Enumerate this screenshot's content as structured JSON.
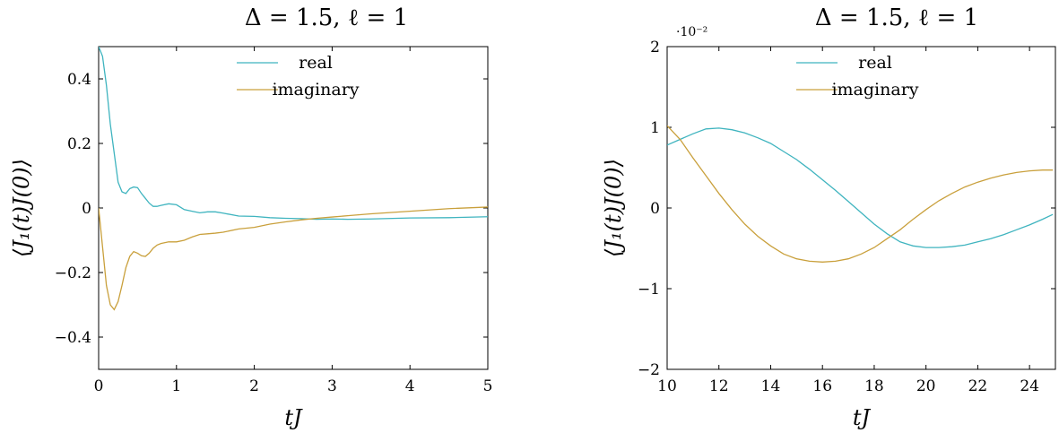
{
  "chart_data": [
    {
      "type": "line",
      "title": "Δ = 1.5, ℓ = 1",
      "xlabel": "tJ",
      "ylabel": "⟨J₁(t)J(0)⟩",
      "xlim": [
        0,
        5
      ],
      "ylim": [
        -0.5,
        0.5
      ],
      "xticks": [
        "0",
        "1",
        "2",
        "3",
        "4",
        "5"
      ],
      "xtick_values": [
        0,
        1,
        2,
        3,
        4,
        5
      ],
      "yticks": [
        "−0.4",
        "−0.2",
        "0",
        "0.2",
        "0.4"
      ],
      "ytick_values": [
        -0.4,
        -0.2,
        0,
        0.2,
        0.4
      ],
      "legend": "top-right",
      "series": [
        {
          "name": "real",
          "color": "#3fb4bf",
          "x": [
            0,
            0.05,
            0.1,
            0.15,
            0.2,
            0.25,
            0.3,
            0.35,
            0.4,
            0.45,
            0.5,
            0.55,
            0.6,
            0.65,
            0.7,
            0.75,
            0.8,
            0.9,
            1.0,
            1.1,
            1.2,
            1.3,
            1.4,
            1.5,
            1.6,
            1.8,
            2.0,
            2.2,
            2.4,
            2.6,
            2.8,
            3.0,
            3.2,
            3.5,
            4.0,
            4.5,
            5.0
          ],
          "y": [
            0.5,
            0.47,
            0.38,
            0.26,
            0.17,
            0.08,
            0.05,
            0.045,
            0.06,
            0.065,
            0.063,
            0.045,
            0.03,
            0.015,
            0.005,
            0.005,
            0.008,
            0.013,
            0.01,
            -0.005,
            -0.01,
            -0.015,
            -0.012,
            -0.012,
            -0.016,
            -0.025,
            -0.026,
            -0.03,
            -0.032,
            -0.033,
            -0.035,
            -0.034,
            -0.035,
            -0.034,
            -0.031,
            -0.03,
            -0.027
          ]
        },
        {
          "name": "imaginary",
          "color": "#c9a03c",
          "x": [
            0,
            0.05,
            0.1,
            0.15,
            0.2,
            0.25,
            0.3,
            0.35,
            0.4,
            0.45,
            0.5,
            0.55,
            0.6,
            0.65,
            0.7,
            0.75,
            0.8,
            0.9,
            1.0,
            1.1,
            1.2,
            1.3,
            1.4,
            1.5,
            1.6,
            1.8,
            2.0,
            2.2,
            2.4,
            2.6,
            2.8,
            3.0,
            3.2,
            3.5,
            4.0,
            4.5,
            5.0
          ],
          "y": [
            0,
            -0.12,
            -0.24,
            -0.3,
            -0.315,
            -0.29,
            -0.24,
            -0.185,
            -0.15,
            -0.135,
            -0.14,
            -0.148,
            -0.15,
            -0.14,
            -0.125,
            -0.115,
            -0.11,
            -0.105,
            -0.105,
            -0.1,
            -0.09,
            -0.082,
            -0.08,
            -0.078,
            -0.075,
            -0.065,
            -0.06,
            -0.05,
            -0.043,
            -0.037,
            -0.032,
            -0.028,
            -0.024,
            -0.018,
            -0.01,
            -0.002,
            0.003
          ]
        }
      ]
    },
    {
      "type": "line",
      "title": "Δ = 1.5, ℓ = 1",
      "xlabel": "tJ",
      "ylabel": "⟨J₁(t)J(0)⟩",
      "xlim": [
        10,
        25
      ],
      "ylim": [
        -2,
        2
      ],
      "y_scale_label": "·10⁻²",
      "xticks": [
        "10",
        "12",
        "14",
        "16",
        "18",
        "20",
        "22",
        "24"
      ],
      "xtick_values": [
        10,
        12,
        14,
        16,
        18,
        20,
        22,
        24
      ],
      "yticks": [
        "−2",
        "−1",
        "0",
        "1",
        "2"
      ],
      "ytick_values": [
        -2,
        -1,
        0,
        1,
        2
      ],
      "legend": "top-right",
      "series": [
        {
          "name": "real",
          "color": "#3fb4bf",
          "x": [
            10,
            10.5,
            11,
            11.5,
            12,
            12.5,
            13,
            13.5,
            14,
            14.5,
            15,
            15.5,
            16,
            16.5,
            17,
            17.5,
            18,
            18.5,
            19,
            19.5,
            20,
            20.5,
            21,
            21.5,
            22,
            22.5,
            23,
            23.5,
            24,
            24.5,
            24.9
          ],
          "y": [
            0.78,
            0.85,
            0.92,
            0.98,
            0.99,
            0.97,
            0.93,
            0.87,
            0.8,
            0.7,
            0.6,
            0.48,
            0.35,
            0.22,
            0.08,
            -0.06,
            -0.2,
            -0.32,
            -0.42,
            -0.47,
            -0.49,
            -0.49,
            -0.48,
            -0.46,
            -0.42,
            -0.38,
            -0.33,
            -0.27,
            -0.21,
            -0.14,
            -0.08
          ]
        },
        {
          "name": "imaginary",
          "color": "#c9a03c",
          "x": [
            10,
            10.5,
            11,
            11.5,
            12,
            12.5,
            13,
            13.5,
            14,
            14.5,
            15,
            15.5,
            16,
            16.5,
            17,
            17.5,
            18,
            18.5,
            19,
            19.5,
            20,
            20.5,
            21,
            21.5,
            22,
            22.5,
            23,
            23.5,
            24,
            24.5,
            24.9
          ],
          "y": [
            1.02,
            0.85,
            0.62,
            0.4,
            0.18,
            -0.02,
            -0.2,
            -0.35,
            -0.47,
            -0.57,
            -0.63,
            -0.66,
            -0.67,
            -0.66,
            -0.63,
            -0.57,
            -0.49,
            -0.38,
            -0.27,
            -0.14,
            -0.02,
            0.09,
            0.18,
            0.26,
            0.32,
            0.37,
            0.41,
            0.44,
            0.46,
            0.47,
            0.47
          ]
        }
      ]
    }
  ]
}
